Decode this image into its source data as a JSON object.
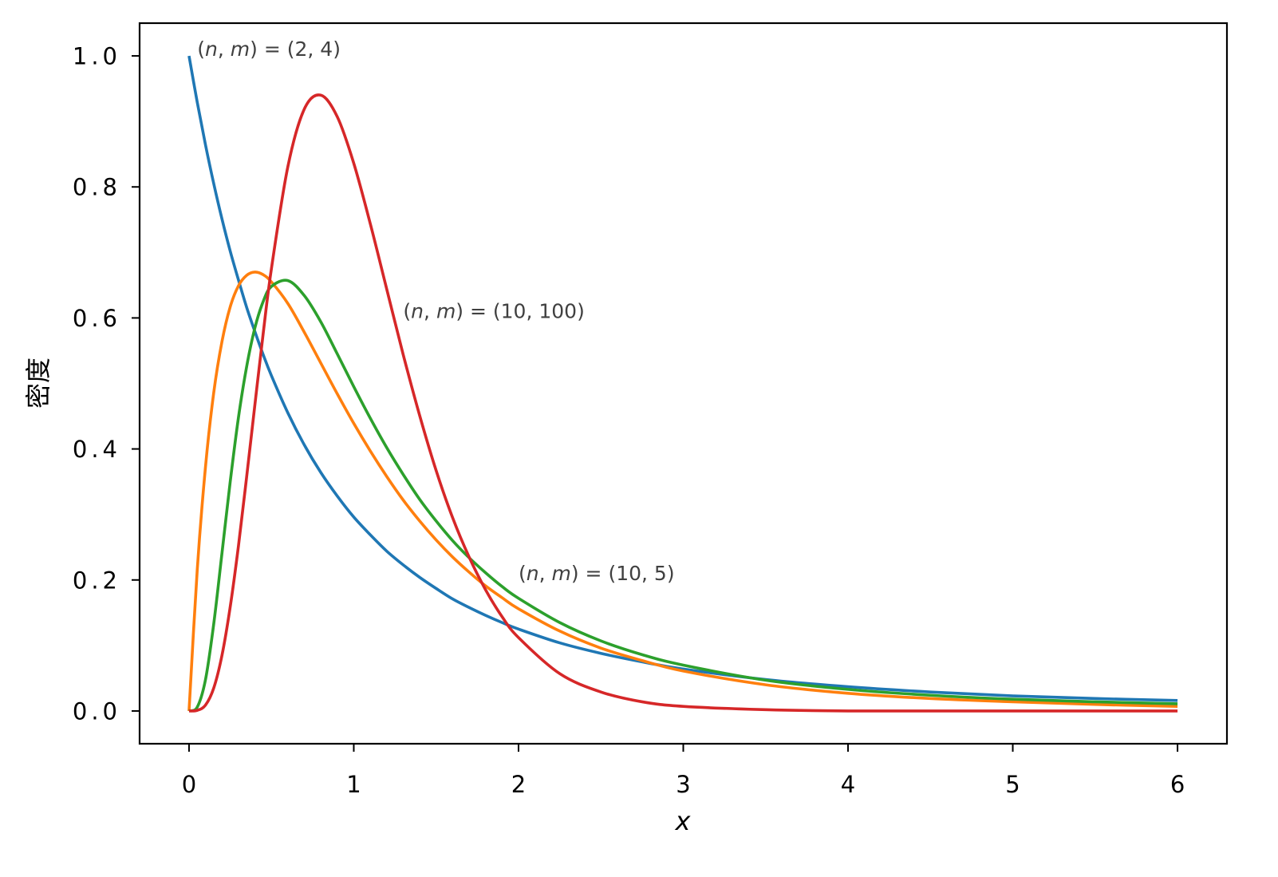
{
  "chart_data": {
    "type": "line",
    "xlabel": "x",
    "ylabel": "密度",
    "xlim": [
      -0.3,
      6.3
    ],
    "ylim": [
      -0.05,
      1.05
    ],
    "grid": false,
    "x_ticks": [
      0,
      1,
      2,
      3,
      4,
      5,
      6
    ],
    "x_tick_labels": [
      "0",
      "1",
      "2",
      "3",
      "4",
      "5",
      "6"
    ],
    "y_ticks": [
      0,
      0.2,
      0.4,
      0.6,
      0.8,
      1.0
    ],
    "y_tick_labels": [
      "0.0",
      "0.2",
      "0.4",
      "0.6",
      "0.8",
      "1.0"
    ],
    "x": [
      0,
      0.05,
      0.1,
      0.15,
      0.2,
      0.25,
      0.3,
      0.35,
      0.4,
      0.45,
      0.5,
      0.6,
      0.7,
      0.8,
      0.9,
      1.0,
      1.1,
      1.2,
      1.3,
      1.4,
      1.5,
      1.6,
      1.7,
      1.8,
      1.9,
      2.0,
      2.25,
      2.5,
      2.75,
      3.0,
      3.5,
      4.0,
      4.5,
      5.0,
      5.5,
      6.0
    ],
    "series": [
      {
        "color": "#1f77b4",
        "values": [
          1.0,
          0.929,
          0.864,
          0.805,
          0.751,
          0.702,
          0.658,
          0.616,
          0.579,
          0.544,
          0.512,
          0.455,
          0.406,
          0.364,
          0.328,
          0.296,
          0.269,
          0.244,
          0.223,
          0.204,
          0.187,
          0.171,
          0.158,
          0.146,
          0.135,
          0.125,
          0.104,
          0.088,
          0.075,
          0.064,
          0.048,
          0.037,
          0.029,
          0.023,
          0.019,
          0.016
        ]
      },
      {
        "color": "#ff7f0e",
        "values": [
          0,
          0.216,
          0.373,
          0.486,
          0.564,
          0.617,
          0.649,
          0.665,
          0.67,
          0.666,
          0.655,
          0.622,
          0.578,
          0.531,
          0.484,
          0.439,
          0.397,
          0.358,
          0.322,
          0.29,
          0.261,
          0.235,
          0.212,
          0.191,
          0.173,
          0.156,
          0.122,
          0.096,
          0.077,
          0.061,
          0.04,
          0.027,
          0.019,
          0.014,
          0.01,
          0.007
        ]
      },
      {
        "color": "#2ca02c",
        "values": [
          0,
          0.006,
          0.048,
          0.133,
          0.241,
          0.35,
          0.448,
          0.526,
          0.585,
          0.625,
          0.648,
          0.657,
          0.634,
          0.594,
          0.545,
          0.495,
          0.447,
          0.402,
          0.361,
          0.323,
          0.29,
          0.26,
          0.234,
          0.211,
          0.19,
          0.172,
          0.135,
          0.107,
          0.086,
          0.07,
          0.047,
          0.033,
          0.024,
          0.018,
          0.014,
          0.011
        ]
      },
      {
        "color": "#d62728",
        "values": [
          0,
          0.001,
          0.009,
          0.035,
          0.085,
          0.159,
          0.252,
          0.358,
          0.468,
          0.576,
          0.675,
          0.831,
          0.919,
          0.94,
          0.907,
          0.836,
          0.744,
          0.644,
          0.544,
          0.451,
          0.367,
          0.295,
          0.235,
          0.185,
          0.144,
          0.112,
          0.057,
          0.029,
          0.014,
          0.007,
          0.002,
          0.0,
          0.0,
          0.0,
          0.0,
          0.0
        ]
      }
    ],
    "annotations": [
      {
        "text": "(n, m) = (2, 4)",
        "color": "#404040"
      },
      {
        "text": "(n, m) = (10, 100)",
        "color": "#404040"
      },
      {
        "text": "(n, m) = (10, 5)",
        "color": "#404040"
      }
    ],
    "axis_color": "#000000"
  }
}
